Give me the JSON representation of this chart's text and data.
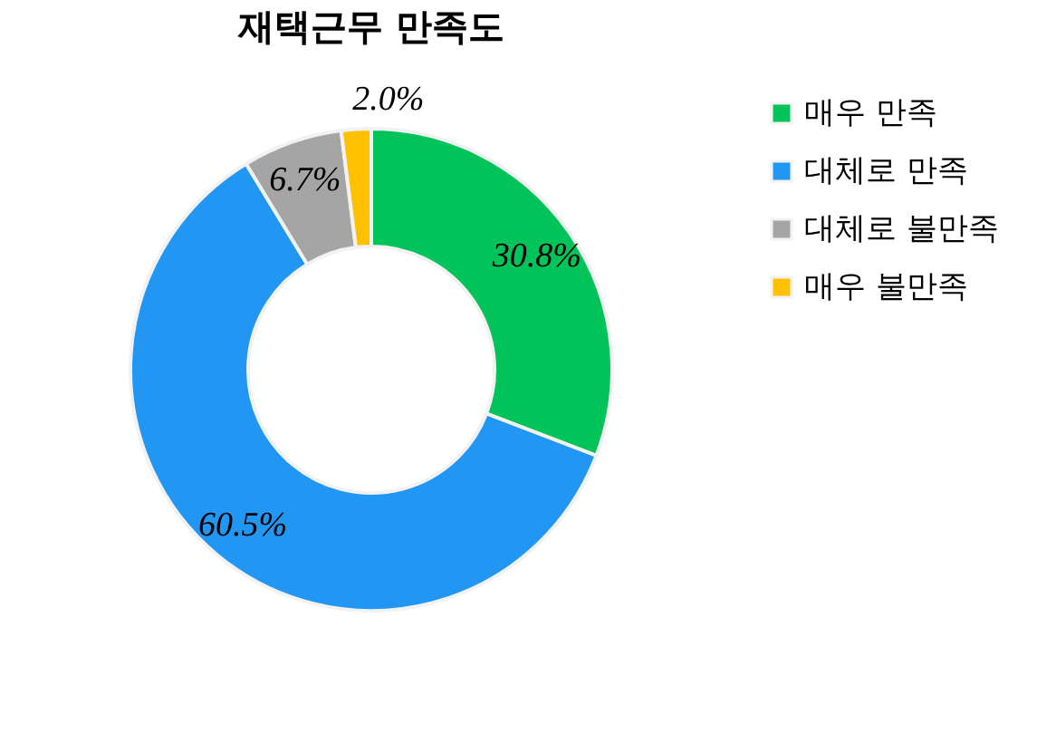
{
  "chart_data": {
    "type": "donut",
    "title": "재택근무 만족도",
    "categories": [
      "매우 만족",
      "대체로 만족",
      "대체로 불만족",
      "매우 불만족"
    ],
    "values": [
      30.8,
      60.5,
      6.7,
      2.0
    ],
    "colors": [
      "#00c35a",
      "#2196f3",
      "#a5a5a5",
      "#ffc000"
    ],
    "value_labels": [
      "30.8%",
      "60.5%",
      "6.7%",
      "2.0%"
    ],
    "legend": "right"
  }
}
